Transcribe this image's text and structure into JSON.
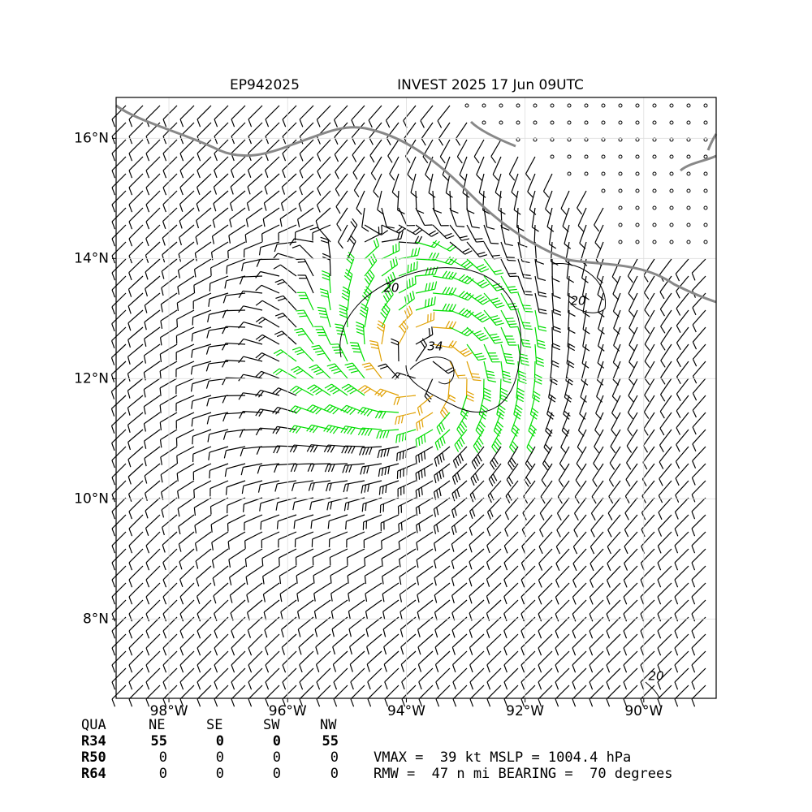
{
  "map": {
    "title_left": "EP942025",
    "title_right": "INVEST 2025 17 Jun 09UTC",
    "xlim": [
      -98.89,
      -88.78
    ],
    "ylim": [
      6.68,
      16.68
    ],
    "xticks": [
      {
        "value": -98,
        "label": "98°W"
      },
      {
        "value": -96,
        "label": "96°W"
      },
      {
        "value": -94,
        "label": "94°W"
      },
      {
        "value": -92,
        "label": "92°W"
      },
      {
        "value": -90,
        "label": "90°W"
      }
    ],
    "yticks": [
      {
        "value": 8,
        "label": "8°N"
      },
      {
        "value": 10,
        "label": "10°N"
      },
      {
        "value": 12,
        "label": "12°N"
      },
      {
        "value": 14,
        "label": "14°N"
      },
      {
        "value": 16,
        "label": "16°N"
      }
    ],
    "contour_labels": [
      "20",
      "34",
      "20",
      "20"
    ],
    "table": {
      "header": [
        "QUA",
        "NE",
        "SE",
        "SW",
        "NW"
      ],
      "rows": [
        [
          "R34",
          55,
          0,
          0,
          55
        ],
        [
          "R50",
          0,
          0,
          0,
          0
        ],
        [
          "R64",
          0,
          0,
          0,
          0
        ]
      ]
    },
    "summary": [
      "VMAX =  39 kt MSLP = 1004.4 hPa",
      "RMW =  47 n mi BEARING =  70 degrees"
    ]
  }
}
